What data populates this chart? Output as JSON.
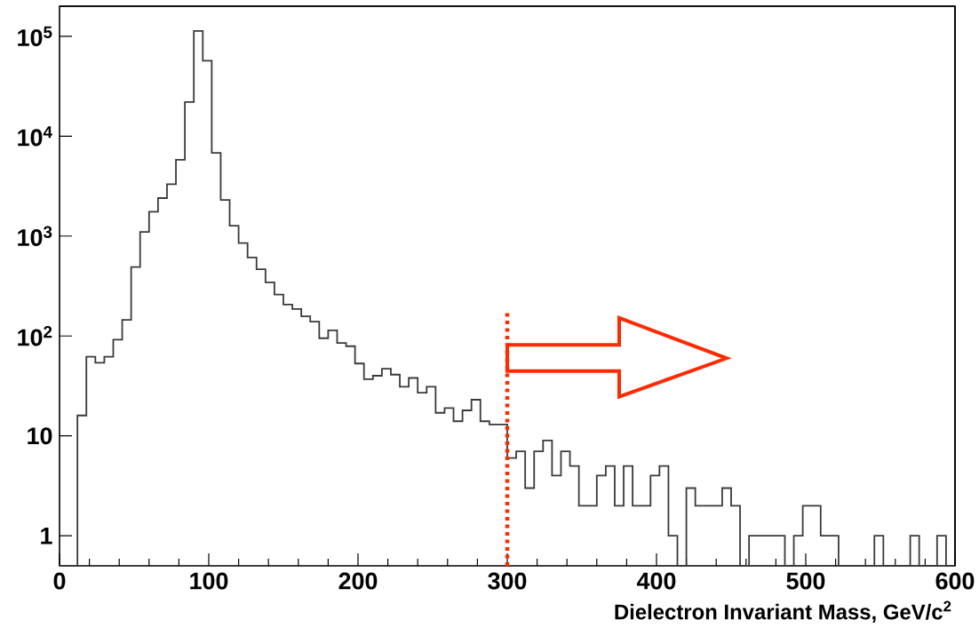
{
  "chart_data": {
    "type": "histogram",
    "xlabel": "Dielectron Invariant Mass, GeV/c$^{2}$",
    "bins": [
      0,
      6,
      12,
      18,
      24,
      30,
      36,
      42,
      48,
      54,
      60,
      66,
      72,
      78,
      84,
      90,
      96,
      102,
      108,
      114,
      120,
      126,
      132,
      138,
      144,
      150,
      156,
      162,
      168,
      174,
      180,
      186,
      192,
      198,
      204,
      210,
      216,
      222,
      228,
      234,
      240,
      246,
      252,
      258,
      264,
      270,
      276,
      282,
      288,
      294,
      300,
      306,
      312,
      318,
      324,
      330,
      336,
      342,
      348,
      354,
      360,
      366,
      372,
      378,
      384,
      390,
      396,
      402,
      408,
      414,
      420,
      426,
      432,
      438,
      444,
      450,
      456,
      462,
      468,
      474,
      480,
      486,
      492,
      498,
      504,
      510,
      516,
      522,
      528,
      534,
      540,
      546,
      552,
      558,
      564,
      570,
      576,
      582,
      588,
      594,
      600
    ],
    "values": [
      null,
      null,
      16,
      62,
      54,
      62,
      92,
      145,
      490,
      1100,
      1750,
      2400,
      3300,
      5800,
      22000,
      113000,
      57000,
      6800,
      2300,
      1270,
      850,
      610,
      465,
      344,
      260,
      206,
      186,
      157,
      139,
      95,
      114,
      85,
      79,
      53,
      37,
      40,
      47,
      41,
      31,
      38,
      27,
      31,
      17,
      19,
      14,
      18,
      23,
      14,
      13,
      13,
      6,
      7,
      3,
      7,
      9,
      4,
      7,
      5,
      2,
      2,
      4,
      5,
      2,
      5,
      2,
      2,
      4,
      5,
      1,
      null,
      3,
      2,
      2,
      2,
      3,
      2,
      null,
      1,
      1,
      1,
      1,
      null,
      1,
      2,
      2,
      1,
      1,
      null,
      null,
      null,
      null,
      1,
      null,
      null,
      null,
      1,
      null,
      null,
      1,
      null
    ],
    "color": "#3a3a3a",
    "log": "y",
    "xlim": [
      0,
      600
    ],
    "ylim": [
      0.5,
      200000
    ],
    "xticks": [
      0,
      100,
      200,
      300,
      400,
      500,
      600
    ],
    "yticks": [
      1,
      10,
      {
        "value": 100,
        "label": "10$^{2}$"
      },
      {
        "value": 1000,
        "label": "10$^{3}$"
      },
      {
        "value": 10000,
        "label": "10$^{4}$"
      },
      {
        "value": 100000,
        "label": "10$^{5}$"
      }
    ],
    "ref_lines": [
      {
        "axis": "x",
        "value": 300,
        "color": "#ff2a00",
        "line_style": "dotted"
      }
    ]
  }
}
